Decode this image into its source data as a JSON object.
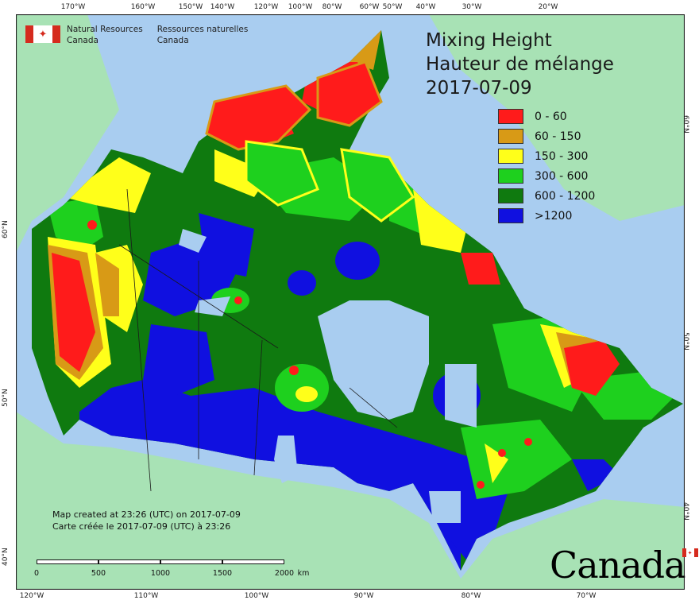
{
  "map": {
    "title_en": "Mixing Height",
    "title_fr": "Hauteur de mélange",
    "date": "2017-07-09",
    "colors": {
      "ocean": "#a9cdf0",
      "land_outside": "#a8e2b5",
      "frame": "#222222"
    },
    "legend": [
      {
        "label": "0 - 60",
        "color": "#ff1b1b"
      },
      {
        "label": "60 - 150",
        "color": "#d89a16"
      },
      {
        "label": "150 - 300",
        "color": "#ffff1a"
      },
      {
        "label": "300 - 600",
        "color": "#1ed01e"
      },
      {
        "label": "600 - 1200",
        "color": "#0f7a0f"
      },
      {
        "label": ">1200",
        "color": "#1010e0"
      }
    ],
    "ticks_top": [
      "170°W",
      "160°W",
      "150°W",
      "140°W",
      "120°W",
      "100°W",
      "80°W",
      "60°W",
      "50°W",
      "40°W",
      "30°W",
      "20°W"
    ],
    "ticks_bottom": [
      "120°W",
      "110°W",
      "100°W",
      "90°W",
      "80°W",
      "70°W"
    ],
    "ticks_left": [
      "60°N",
      "50°N",
      "40°N"
    ],
    "ticks_right": [
      "60°N",
      "50°N",
      "40°N"
    ],
    "agency": {
      "name_en_1": "Natural Resources",
      "name_en_2": "Canada",
      "name_fr_1": "Ressources naturelles",
      "name_fr_2": "Canada"
    },
    "credit": {
      "line_en": "Map created at 23:26 (UTC) on 2017-07-09",
      "line_fr": "Carte créée le 2017-07-09 (UTC) à 23:26"
    },
    "scale": {
      "labels": [
        "0",
        "500",
        "1000",
        "1500",
        "2000"
      ],
      "unit": "km"
    },
    "wordmark": "Canada",
    "flag_icon": "maple-leaf-icon"
  }
}
